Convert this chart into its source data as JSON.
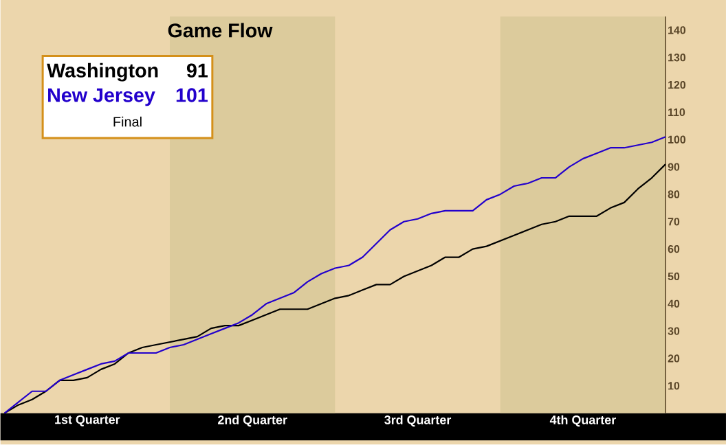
{
  "chart_data": {
    "type": "line",
    "title": "Game Flow",
    "legend": "top left",
    "line_style": "solid",
    "categories": [
      null,
      null,
      null,
      null,
      null,
      null,
      "1st Quarter",
      null,
      null,
      null,
      null,
      null,
      null,
      null,
      null,
      null,
      null,
      null,
      "2nd Quarter",
      null,
      null,
      null,
      null,
      null,
      null,
      null,
      null,
      null,
      null,
      null,
      "3rd Quarter",
      null,
      null,
      null,
      null,
      null,
      null,
      null,
      null,
      null,
      null,
      null,
      "4th Quarter",
      null,
      null,
      null,
      null,
      null,
      null
    ],
    "series": [
      {
        "name": "Washington",
        "color": "#000000",
        "values": [
          0,
          3,
          5,
          8,
          12,
          12,
          13,
          16,
          18,
          22,
          24,
          25,
          26,
          27,
          28,
          31,
          32,
          32,
          34,
          36,
          38,
          38,
          38,
          40,
          42,
          43,
          45,
          47,
          47,
          50,
          52,
          54,
          57,
          57,
          60,
          61,
          63,
          65,
          67,
          69,
          70,
          72,
          72,
          72,
          75,
          77,
          82,
          86,
          91
        ]
      },
      {
        "name": "New Jersey",
        "color": "#2200cc",
        "values": [
          0,
          4,
          8,
          8,
          12,
          14,
          16,
          18,
          19,
          22,
          22,
          22,
          24,
          25,
          27,
          29,
          31,
          33,
          36,
          40,
          42,
          44,
          48,
          51,
          53,
          54,
          57,
          62,
          67,
          70,
          71,
          73,
          74,
          74,
          74,
          78,
          80,
          83,
          84,
          86,
          86,
          90,
          93,
          95,
          97,
          97,
          98,
          99,
          101
        ]
      }
    ],
    "annotations": [
      "91",
      "101",
      "Final"
    ],
    "ylim": [
      0,
      145
    ],
    "yticks": [
      10,
      20,
      30,
      40,
      50,
      60,
      70,
      80,
      90,
      100,
      110,
      120,
      130,
      140
    ]
  }
}
